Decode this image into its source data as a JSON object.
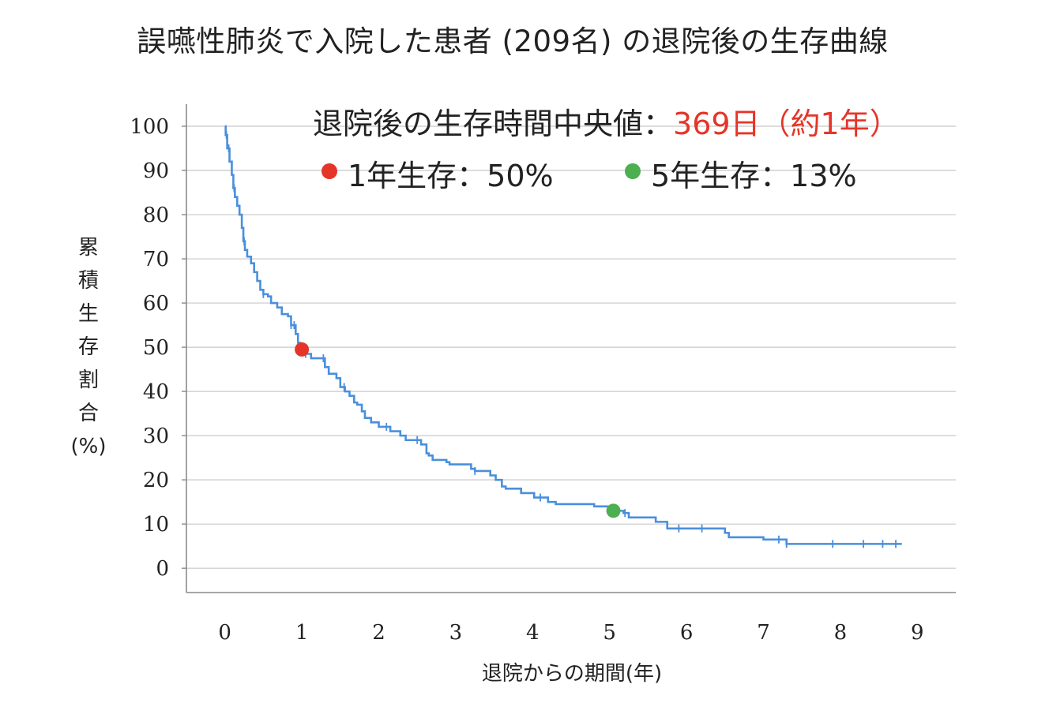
{
  "chart_data": {
    "type": "line",
    "title": "誤嚥性肺炎で入院した患者 (209名) の退院後の生存曲線",
    "xlabel": "退院からの期間(年)",
    "ylabel": [
      "累",
      "積",
      "生",
      "存",
      "割",
      "合",
      "(%)"
    ],
    "xlim": [
      -0.5,
      9.5
    ],
    "ylim": [
      -5.5,
      105
    ],
    "x_ticks": [
      0,
      1,
      2,
      3,
      4,
      5,
      6,
      7,
      8,
      9
    ],
    "y_ticks": [
      0,
      10,
      20,
      30,
      40,
      50,
      60,
      70,
      80,
      90,
      100
    ],
    "grid": "horizontal",
    "series": [
      {
        "name": "",
        "color": "#4a8fdc",
        "step": true,
        "points": [
          [
            0,
            100
          ],
          [
            0.01,
            98
          ],
          [
            0.03,
            95
          ],
          [
            0.06,
            92
          ],
          [
            0.09,
            89
          ],
          [
            0.11,
            86
          ],
          [
            0.13,
            84
          ],
          [
            0.16,
            82
          ],
          [
            0.19,
            80
          ],
          [
            0.22,
            77
          ],
          [
            0.24,
            74
          ],
          [
            0.26,
            72
          ],
          [
            0.29,
            70.5
          ],
          [
            0.34,
            69
          ],
          [
            0.38,
            67
          ],
          [
            0.42,
            65
          ],
          [
            0.46,
            63
          ],
          [
            0.5,
            62
          ],
          [
            0.56,
            61.5
          ],
          [
            0.6,
            60
          ],
          [
            0.68,
            59
          ],
          [
            0.74,
            57.5
          ],
          [
            0.82,
            57
          ],
          [
            0.86,
            55
          ],
          [
            0.92,
            53
          ],
          [
            0.95,
            51
          ],
          [
            0.98,
            49.5
          ],
          [
            1.05,
            48.5
          ],
          [
            1.12,
            47.5
          ],
          [
            1.25,
            47.5
          ],
          [
            1.3,
            45.5
          ],
          [
            1.35,
            44
          ],
          [
            1.45,
            43
          ],
          [
            1.5,
            41
          ],
          [
            1.56,
            40
          ],
          [
            1.62,
            39
          ],
          [
            1.68,
            37.5
          ],
          [
            1.72,
            37
          ],
          [
            1.78,
            35.5
          ],
          [
            1.82,
            34
          ],
          [
            1.9,
            33
          ],
          [
            2.0,
            32
          ],
          [
            2.15,
            31
          ],
          [
            2.28,
            30
          ],
          [
            2.35,
            29
          ],
          [
            2.55,
            28
          ],
          [
            2.62,
            26
          ],
          [
            2.65,
            25.5
          ],
          [
            2.7,
            24.5
          ],
          [
            2.88,
            24
          ],
          [
            2.92,
            23.5
          ],
          [
            3.2,
            22.5
          ],
          [
            3.25,
            22
          ],
          [
            3.45,
            21
          ],
          [
            3.52,
            20
          ],
          [
            3.6,
            18.5
          ],
          [
            3.65,
            18
          ],
          [
            3.85,
            17
          ],
          [
            4.02,
            16
          ],
          [
            4.2,
            15
          ],
          [
            4.3,
            14.5
          ],
          [
            4.8,
            14
          ],
          [
            5.05,
            13
          ],
          [
            5.18,
            12.5
          ],
          [
            5.25,
            11.5
          ],
          [
            5.6,
            10.5
          ],
          [
            5.75,
            9
          ],
          [
            6.5,
            8
          ],
          [
            6.55,
            7
          ],
          [
            7.0,
            6.5
          ],
          [
            7.3,
            5.5
          ],
          [
            8.8,
            5.5
          ]
        ],
        "censor_marks": [
          0.02,
          0.05,
          0.12,
          0.25,
          0.5,
          0.86,
          0.9,
          1.05,
          1.28,
          1.55,
          2.1,
          2.5,
          3.25,
          4.1,
          5.2,
          5.9,
          6.2,
          7.2,
          7.3,
          7.9,
          8.3,
          8.55,
          8.72
        ]
      }
    ],
    "markers": [
      {
        "x": 1.0,
        "y": 49.5,
        "color": "#e53528"
      },
      {
        "x": 5.05,
        "y": 13,
        "color": "#4caf50"
      }
    ],
    "annotations": {
      "median_label": "退院後の生存時間中央値：",
      "median_value": "369日（約1年）",
      "median_value_color": "#e53528",
      "one_year": {
        "label": "1年生存：50%",
        "dot_color": "#e53528"
      },
      "five_year": {
        "label": "5年生存：13%",
        "dot_color": "#4caf50"
      }
    }
  }
}
